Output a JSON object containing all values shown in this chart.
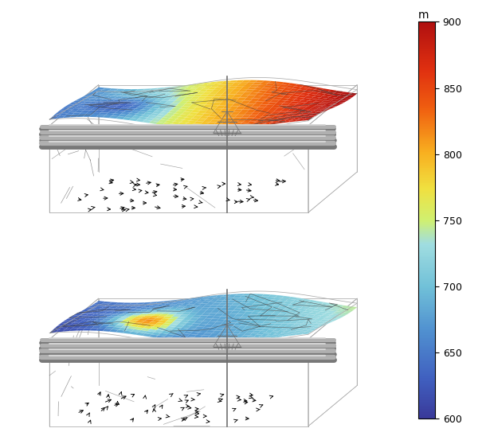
{
  "colorbar_min": 600,
  "colorbar_max": 900,
  "colorbar_ticks": [
    600,
    650,
    700,
    750,
    800,
    850,
    900
  ],
  "colorbar_label": "m",
  "background_color": "#ffffff",
  "fig_width": 6.1,
  "fig_height": 5.48,
  "dpi": 100,
  "cmap_colors": [
    [
      0.0,
      "#3a3a9a"
    ],
    [
      0.1,
      "#4060c0"
    ],
    [
      0.22,
      "#5090d0"
    ],
    [
      0.33,
      "#70c0d8"
    ],
    [
      0.44,
      "#a0dde0"
    ],
    [
      0.5,
      "#d0f070"
    ],
    [
      0.58,
      "#f0e040"
    ],
    [
      0.67,
      "#f8b020"
    ],
    [
      0.78,
      "#f06010"
    ],
    [
      0.88,
      "#e03010"
    ],
    [
      1.0,
      "#b01010"
    ]
  ]
}
